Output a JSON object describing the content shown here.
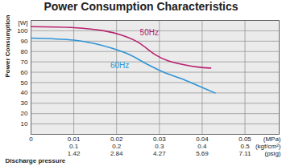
{
  "chart_data": {
    "type": "line",
    "title": "Power Consumption Characteristics",
    "ylabel": "Power Consumption",
    "yunit": "[W]",
    "xlabel": "Discharge pressure",
    "xunit": "(MPa)",
    "xlim": [
      0,
      0.058
    ],
    "xticks": [
      0,
      0.01,
      0.02,
      0.03,
      0.04,
      0.05
    ],
    "secondary_x_axes": [
      {
        "unit": "(kgf/cm²)",
        "ticks": [
          {
            "value": 0.01,
            "label": "0.1"
          },
          {
            "value": 0.02,
            "label": "0.2"
          },
          {
            "value": 0.03,
            "label": "0.3"
          },
          {
            "value": 0.04,
            "label": "0.4"
          },
          {
            "value": 0.05,
            "label": "0.5"
          }
        ]
      },
      {
        "unit": "(psig)",
        "ticks": [
          {
            "value": 0.01,
            "label": "1.42"
          },
          {
            "value": 0.02,
            "label": "2.84"
          },
          {
            "value": 0.03,
            "label": "4.27"
          },
          {
            "value": 0.04,
            "label": "5.69"
          },
          {
            "value": 0.05,
            "label": "7.11"
          }
        ]
      }
    ],
    "ylim": [
      0,
      110
    ],
    "yticks": [
      10,
      20,
      30,
      40,
      50,
      60,
      70,
      80,
      90,
      100
    ],
    "grid": true,
    "series": [
      {
        "name": "50Hz",
        "color": "#b8216e",
        "x": [
          0,
          0.01,
          0.017,
          0.021,
          0.025,
          0.029,
          0.032,
          0.036,
          0.039,
          0.042
        ],
        "values": [
          104,
          103,
          100,
          96,
          89,
          77,
          71,
          67,
          65,
          64
        ]
      },
      {
        "name": "60Hz",
        "color": "#2f94d6",
        "x": [
          0,
          0.01,
          0.015,
          0.019,
          0.023,
          0.027,
          0.031,
          0.035,
          0.039,
          0.043
        ],
        "values": [
          93,
          91,
          87.5,
          83,
          77,
          68,
          60,
          54,
          47,
          40
        ]
      }
    ]
  }
}
